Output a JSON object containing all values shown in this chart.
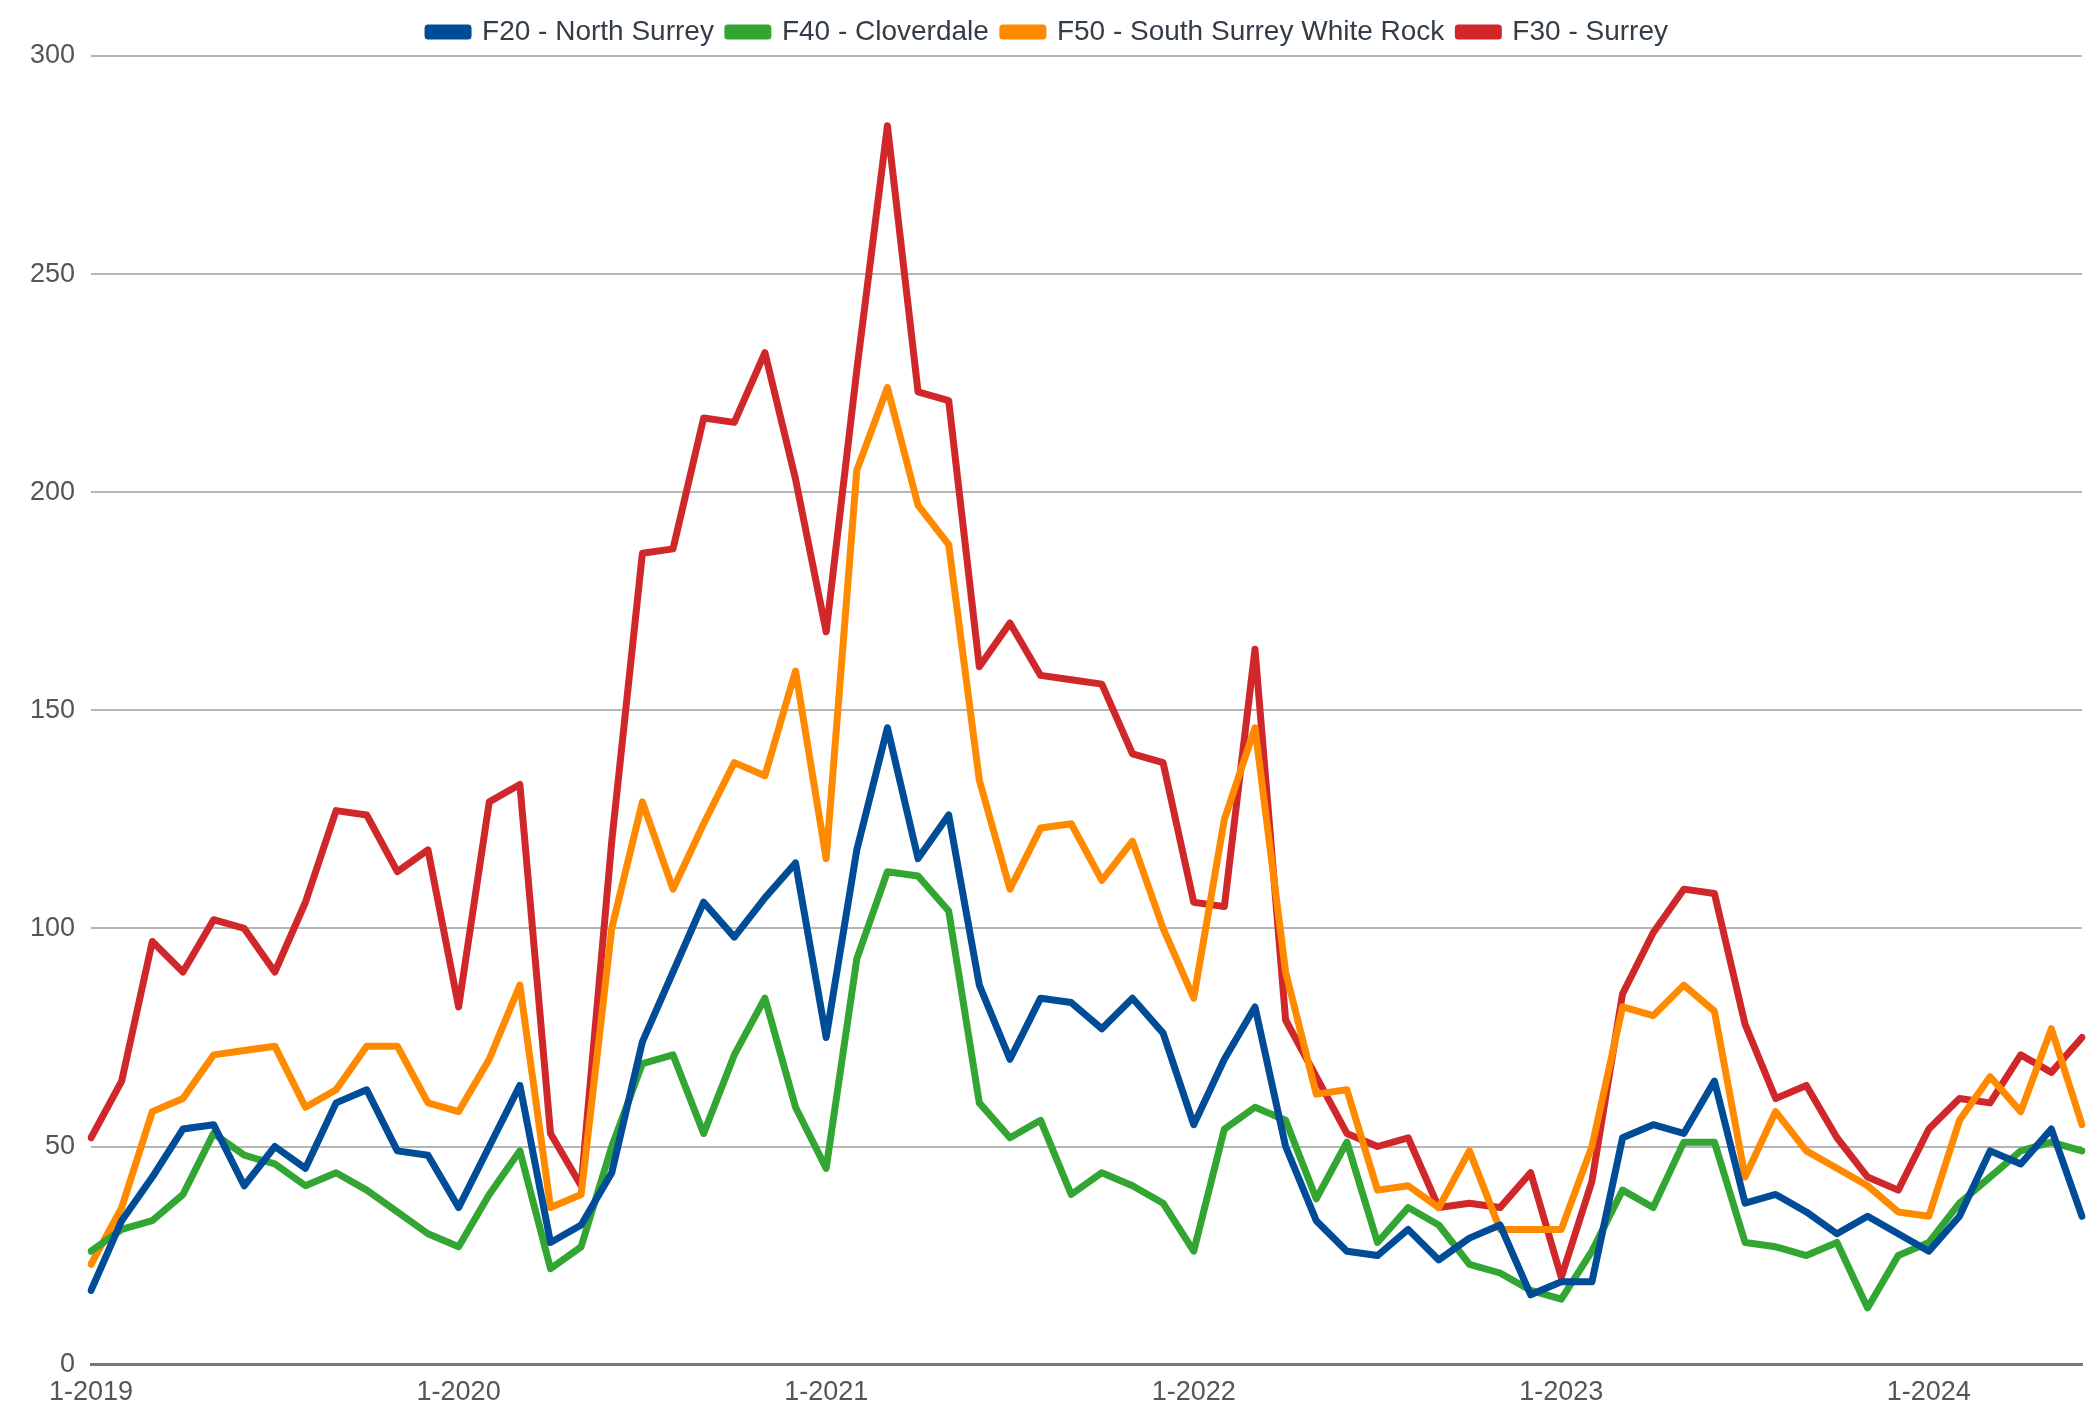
{
  "chart_data": {
    "type": "line",
    "categories": [
      "1-2019",
      null,
      null,
      null,
      null,
      null,
      null,
      null,
      null,
      null,
      null,
      null,
      "1-2020",
      null,
      null,
      null,
      null,
      null,
      null,
      null,
      null,
      null,
      null,
      null,
      "1-2021",
      null,
      null,
      null,
      null,
      null,
      null,
      null,
      null,
      null,
      null,
      null,
      "1-2022",
      null,
      null,
      null,
      null,
      null,
      null,
      null,
      null,
      null,
      null,
      null,
      "1-2023",
      null,
      null,
      null,
      null,
      null,
      null,
      null,
      null,
      null,
      null,
      null,
      "1-2024",
      null,
      null,
      null,
      null,
      null
    ],
    "series": [
      {
        "name": "F20 - North Surrey",
        "color": "#004c97",
        "values": [
          17,
          33,
          43,
          54,
          55,
          41,
          50,
          45,
          60,
          63,
          49,
          48,
          36,
          50,
          64,
          28,
          32,
          44,
          74,
          90,
          106,
          98,
          107,
          115,
          75,
          118,
          146,
          116,
          126,
          87,
          70,
          84,
          83,
          77,
          84,
          76,
          55,
          70,
          82,
          50,
          33,
          26,
          25,
          31,
          24,
          29,
          32,
          16,
          19,
          19,
          52,
          55,
          53,
          65,
          37,
          39,
          35,
          30,
          34,
          30,
          26,
          34,
          49,
          46,
          54,
          34
        ]
      },
      {
        "name": "F40 - Cloverdale",
        "color": "#33a532",
        "values": [
          26,
          31,
          33,
          39,
          53,
          48,
          46,
          41,
          44,
          40,
          35,
          30,
          27,
          39,
          49,
          22,
          27,
          50,
          69,
          71,
          53,
          71,
          84,
          59,
          45,
          93,
          113,
          112,
          104,
          60,
          52,
          56,
          39,
          44,
          41,
          37,
          26,
          54,
          59,
          56,
          38,
          51,
          28,
          36,
          32,
          23,
          21,
          17,
          15,
          26,
          40,
          36,
          51,
          51,
          28,
          27,
          25,
          28,
          13,
          25,
          28,
          37,
          43,
          49,
          51,
          49
        ]
      },
      {
        "name": "F50 - South Surrey White Rock",
        "color": "#ff8a00",
        "values": [
          23,
          36,
          58,
          61,
          71,
          72,
          73,
          59,
          63,
          73,
          73,
          60,
          58,
          70,
          87,
          36,
          39,
          100,
          129,
          109,
          124,
          138,
          135,
          159,
          116,
          205,
          224,
          197,
          188,
          134,
          109,
          123,
          124,
          111,
          120,
          100,
          84,
          125,
          146,
          90,
          62,
          63,
          40,
          41,
          36,
          49,
          31,
          31,
          31,
          50,
          82,
          80,
          87,
          81,
          43,
          58,
          49,
          45,
          41,
          35,
          34,
          56,
          66,
          58,
          77,
          55
        ]
      },
      {
        "name": "F30 - Surrey",
        "color": "#d0282a",
        "values": [
          52,
          65,
          97,
          90,
          102,
          100,
          90,
          106,
          127,
          126,
          113,
          118,
          82,
          129,
          133,
          53,
          41,
          120,
          186,
          187,
          217,
          216,
          232,
          203,
          168,
          228,
          284,
          223,
          221,
          160,
          170,
          158,
          157,
          156,
          140,
          138,
          106,
          105,
          164,
          79,
          66,
          53,
          50,
          52,
          36,
          37,
          36,
          44,
          20,
          42,
          85,
          99,
          109,
          108,
          78,
          61,
          64,
          52,
          43,
          40,
          54,
          61,
          60,
          71,
          67,
          75
        ]
      }
    ],
    "ylim": [
      0,
      300
    ],
    "yticks": [
      0,
      50,
      100,
      150,
      200,
      250,
      300
    ],
    "grid": "y",
    "legend": "top",
    "marker": "none",
    "line_style": "solid"
  }
}
